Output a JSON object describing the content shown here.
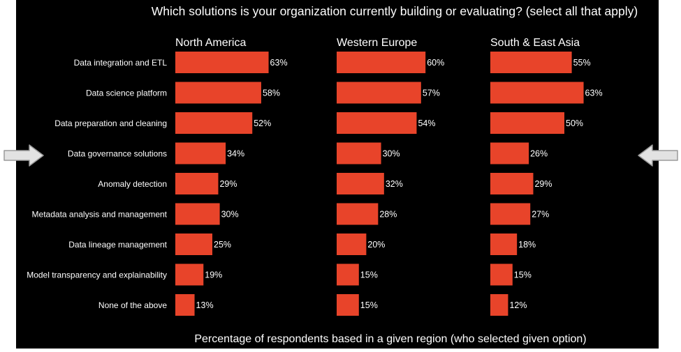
{
  "chart_data": {
    "type": "bar",
    "orientation": "horizontal",
    "title": "Which solutions is your organization currently building or evaluating? (select all that apply)",
    "xlabel": "Percentage of respondents based in a given region (who selected given option)",
    "categories": [
      "Data integration and ETL",
      "Data science platform",
      "Data preparation and cleaning",
      "Data governance solutions",
      "Anomaly detection",
      "Metadata analysis and management",
      "Data lineage management",
      "Model transparency and explainability",
      "None of the above"
    ],
    "series": [
      {
        "name": "North America",
        "values": [
          63,
          58,
          52,
          34,
          29,
          30,
          25,
          19,
          13
        ]
      },
      {
        "name": "Western Europe",
        "values": [
          60,
          57,
          54,
          30,
          32,
          28,
          20,
          15,
          15
        ]
      },
      {
        "name": "South & East Asia",
        "values": [
          55,
          63,
          50,
          26,
          29,
          27,
          18,
          15,
          12
        ]
      }
    ],
    "value_suffix": "%",
    "grid": false,
    "highlighted_category": "Data governance solutions",
    "colors": {
      "bar": "#e8442a",
      "background": "#000000",
      "text": "#ffffff",
      "arrow": "#e2e2e2"
    }
  },
  "arrows": {
    "left": "arrow-right-icon",
    "right": "arrow-left-icon"
  }
}
